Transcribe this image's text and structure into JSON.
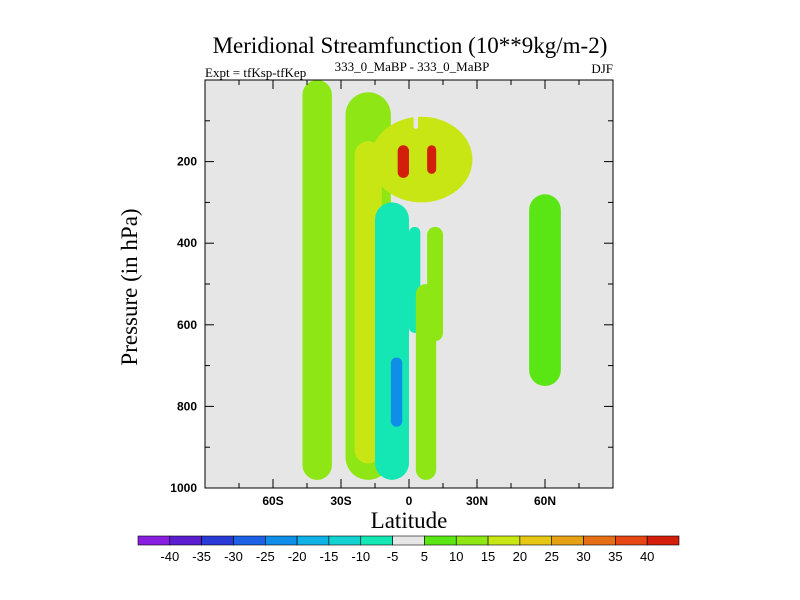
{
  "chart_data": {
    "type": "filled-contour",
    "title": "Meridional Streamfunction (10**9kg/m-2)",
    "subtitle_left": "Expt = tfKsp-tfKep",
    "subtitle_center": "333_0_MaBP - 333_0_MaBP",
    "subtitle_right": "DJF",
    "xlabel": "Latitude",
    "ylabel": "Pressure (in hPa)",
    "xlim": [
      -90,
      90
    ],
    "ylim": [
      1000,
      0
    ],
    "xticks": [
      {
        "value": -60,
        "label": "60S"
      },
      {
        "value": -30,
        "label": "30S"
      },
      {
        "value": 0,
        "label": "0"
      },
      {
        "value": 30,
        "label": "30N"
      },
      {
        "value": 60,
        "label": "60N"
      }
    ],
    "yticks": [
      {
        "value": 200,
        "label": "200"
      },
      {
        "value": 400,
        "label": "400"
      },
      {
        "value": 600,
        "label": "600"
      },
      {
        "value": 800,
        "label": "800"
      },
      {
        "value": 1000,
        "label": "1000"
      }
    ],
    "colorbar": {
      "levels": [
        "-40",
        "-35",
        "-30",
        "-25",
        "-20",
        "-15",
        "-10",
        "-5",
        "5",
        "10",
        "15",
        "20",
        "25",
        "30",
        "35",
        "40"
      ],
      "colors": [
        "#8a1ee0",
        "#5a1ed0",
        "#2a3ad6",
        "#1e60e6",
        "#0e8ee6",
        "#10b2e6",
        "#14d2d2",
        "#14e6b4",
        "#e6e6e6",
        "#5ae614",
        "#8ee614",
        "#c8e614",
        "#e6c814",
        "#e6a014",
        "#e66e14",
        "#e64614",
        "#d21e0a"
      ]
    },
    "features": [
      {
        "name": "positive tongue 45S",
        "lat": [
          -47,
          -34
        ],
        "p": [
          0,
          980
        ],
        "level": 10
      },
      {
        "name": "positive column 20S",
        "lat": [
          -28,
          -8
        ],
        "p": [
          30,
          980
        ],
        "level": 10
      },
      {
        "name": "positive core 22S",
        "lat": [
          -24,
          -12
        ],
        "p": [
          150,
          940
        ],
        "level": 15
      },
      {
        "name": "upper-level positive cell",
        "lat": [
          -17,
          28
        ],
        "p": [
          90,
          300
        ],
        "level": 15
      },
      {
        "name": "upper max 3S",
        "lat": [
          -5,
          0
        ],
        "p": [
          160,
          240
        ],
        "level": 40
      },
      {
        "name": "upper max 10N",
        "lat": [
          8,
          12
        ],
        "p": [
          160,
          230
        ],
        "level": 40
      },
      {
        "name": "negative column 0-5S",
        "lat": [
          -15,
          0
        ],
        "p": [
          300,
          980
        ],
        "level": -10
      },
      {
        "name": "negative core near 5S",
        "lat": [
          -8,
          -3
        ],
        "p": [
          680,
          850
        ],
        "level": -25
      },
      {
        "name": "negative cell 2N",
        "lat": [
          0,
          5
        ],
        "p": [
          360,
          620
        ],
        "level": -10
      },
      {
        "name": "small negative near eq",
        "lat": [
          2,
          4
        ],
        "p": [
          30,
          120
        ],
        "level": -5
      },
      {
        "name": "positive column 8N",
        "lat": [
          3,
          12
        ],
        "p": [
          500,
          980
        ],
        "level": 10
      },
      {
        "name": "positive cell 12N",
        "lat": [
          8,
          15
        ],
        "p": [
          360,
          640
        ],
        "level": 10
      },
      {
        "name": "negative cell 38N",
        "lat": [
          33,
          43
        ],
        "p": [
          100,
          260
        ],
        "level": -5
      },
      {
        "name": "negative cell 35N",
        "lat": [
          31,
          43
        ],
        "p": [
          600,
          980
        ],
        "level": -5
      },
      {
        "name": "positive cell 58N",
        "lat": [
          53,
          67
        ],
        "p": [
          280,
          750
        ],
        "level": 5
      }
    ]
  }
}
